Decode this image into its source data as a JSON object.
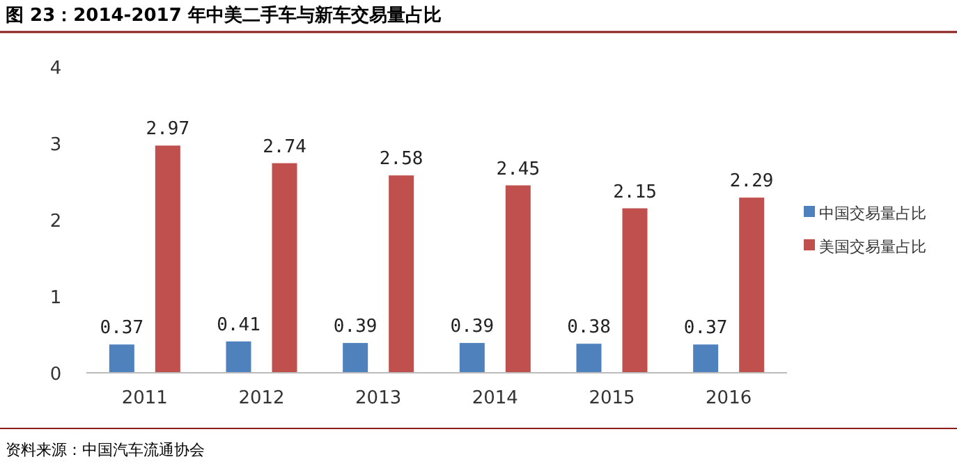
{
  "chart_data": {
    "type": "bar",
    "title": "图 23：2014-2017 年中美二手车与新车交易量占比",
    "categories": [
      "2011",
      "2012",
      "2013",
      "2014",
      "2015",
      "2016"
    ],
    "series": [
      {
        "name": "中国交易量占比",
        "color": "#4f81bd",
        "values": [
          0.37,
          0.41,
          0.39,
          0.39,
          0.38,
          0.37
        ]
      },
      {
        "name": "美国交易量占比",
        "color": "#c0504d",
        "values": [
          2.97,
          2.74,
          2.58,
          2.45,
          2.15,
          2.29
        ]
      }
    ],
    "ylim": [
      0,
      4
    ],
    "yticks": [
      0,
      1,
      2,
      3,
      4
    ],
    "data_labels": true,
    "legend": "right",
    "annotations": [
      "资料来源：中国汽车流通协会"
    ]
  }
}
